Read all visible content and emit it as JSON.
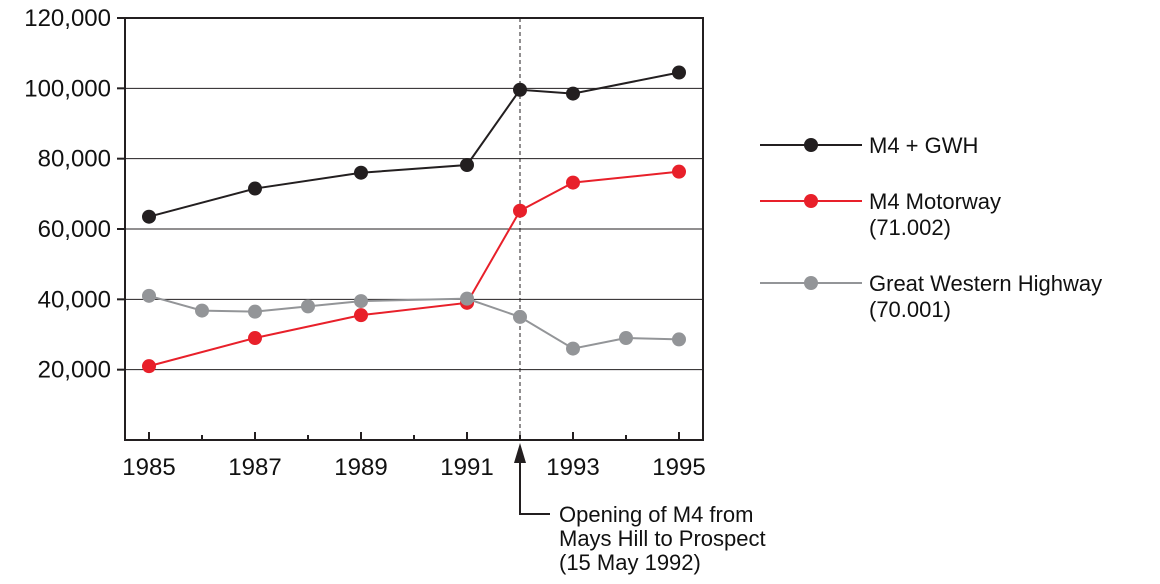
{
  "chart_data": {
    "type": "line",
    "title": "",
    "xlabel": "",
    "ylabel": "",
    "xlim": [
      1985,
      1995
    ],
    "ylim": [
      0,
      120000
    ],
    "grid": true,
    "legend_placement": "right",
    "x_ticks": [
      1985,
      1987,
      1989,
      1991,
      1993,
      1995
    ],
    "x_tick_labels": [
      "1985",
      "1987",
      "1989",
      "1991",
      "1993",
      "1995"
    ],
    "y_ticks": [
      20000,
      40000,
      60000,
      80000,
      100000,
      120000
    ],
    "y_tick_labels": [
      "20,000",
      "40,000",
      "60,000",
      "80,000",
      "100,000",
      "120,000"
    ],
    "series": [
      {
        "name": "M4 + GWH",
        "color": "#231f20",
        "points": [
          [
            1985,
            63500
          ],
          [
            1987,
            71500
          ],
          [
            1989,
            76000
          ],
          [
            1991,
            78200
          ],
          [
            1992,
            99600
          ],
          [
            1993,
            98500
          ],
          [
            1995,
            104500
          ]
        ]
      },
      {
        "name": "M4 Motorway",
        "name_line2": "(71.002)",
        "color": "#e8202a",
        "points": [
          [
            1985,
            21000
          ],
          [
            1987,
            29000
          ],
          [
            1989,
            35500
          ],
          [
            1991,
            39000
          ],
          [
            1992,
            65200
          ],
          [
            1993,
            73200
          ],
          [
            1995,
            76300
          ]
        ]
      },
      {
        "name": "Great Western Highway",
        "name_line2": "(70.001)",
        "color": "#939598",
        "points": [
          [
            1985,
            41000
          ],
          [
            1986,
            36800
          ],
          [
            1987,
            36500
          ],
          [
            1988,
            38000
          ],
          [
            1989,
            39500
          ],
          [
            1991,
            40200
          ],
          [
            1992,
            35000
          ],
          [
            1993,
            26000
          ],
          [
            1994,
            29000
          ],
          [
            1995,
            28600
          ]
        ]
      }
    ],
    "annotation": {
      "x": 1992,
      "lines": [
        "Opening of M4 from",
        "Mays Hill to Prospect",
        "(15 May 1992)"
      ]
    }
  }
}
